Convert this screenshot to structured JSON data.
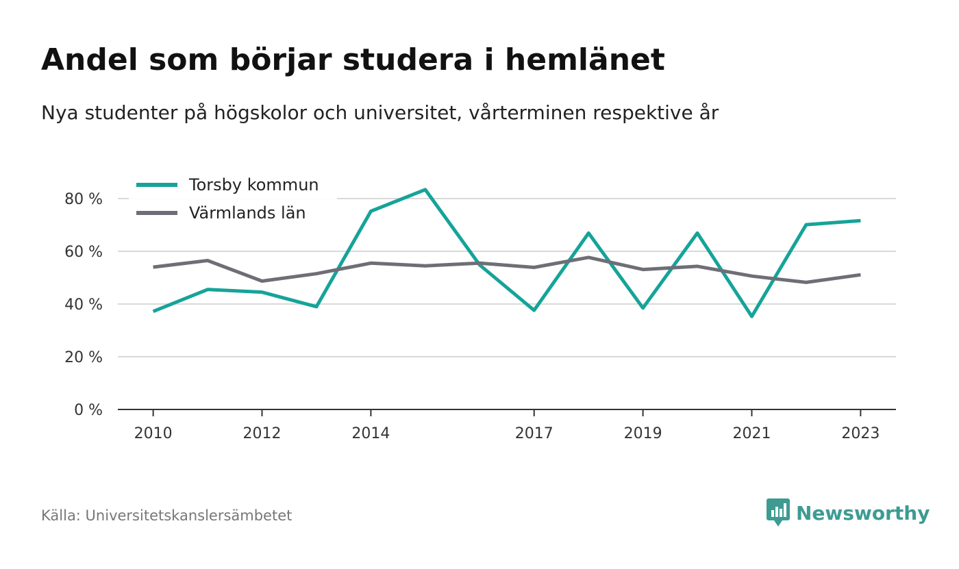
{
  "header": {
    "title": "Andel som börjar studera i hemlänet",
    "subtitle": "Nya studenter på högskolor och universitet, vårterminen respektive år"
  },
  "footer": {
    "source": "Källa: Universitetskanslersämbetet",
    "brand": "Newsworthy"
  },
  "colors": {
    "torsby": "#16a399",
    "varmland": "#6e6e76",
    "grid": "#d9d9d9",
    "axis": "#333333",
    "brand": "#3d9b92"
  },
  "icons": {
    "brand_logo": "bar-chart-speech-bubble-icon"
  },
  "chart_data": {
    "type": "line",
    "title": "Andel som börjar studera i hemlänet",
    "subtitle": "Nya studenter på högskolor och universitet, vårterminen respektive år",
    "x": [
      2010,
      2011,
      2012,
      2013,
      2014,
      2015,
      2016,
      2017,
      2018,
      2019,
      2020,
      2021,
      2022,
      2023
    ],
    "x_ticks": [
      "2010",
      "2012",
      "2014",
      "2017",
      "2019",
      "2021",
      "2023"
    ],
    "y_ticks": [
      "0 %",
      "20 %",
      "40 %",
      "60 %",
      "80 %"
    ],
    "y_tick_values": [
      0,
      20,
      40,
      60,
      80
    ],
    "ylim": [
      0,
      80
    ],
    "xlim": [
      2009.35,
      2023.65
    ],
    "grid": true,
    "legend_position": "top-left",
    "series": [
      {
        "name": "Torsby kommun",
        "color": "#16a399",
        "values": [
          37.2,
          45.5,
          44.5,
          39.0,
          75.2,
          83.4,
          54.8,
          37.6,
          66.9,
          38.5,
          66.9,
          35.3,
          70.1,
          71.6
        ]
      },
      {
        "name": "Värmlands län",
        "color": "#6e6e76",
        "values": [
          54.0,
          56.5,
          48.7,
          51.5,
          55.5,
          54.5,
          55.5,
          53.9,
          57.7,
          53.1,
          54.3,
          50.6,
          48.2,
          51.1
        ]
      }
    ]
  }
}
